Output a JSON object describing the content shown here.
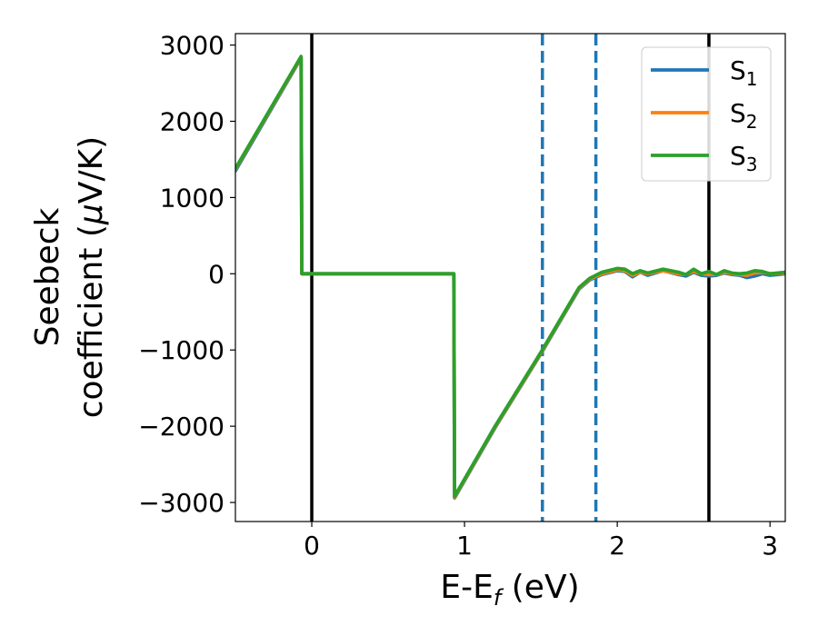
{
  "chart_data": {
    "type": "line",
    "xlabel": "E-E",
    "xlabel_sub": "f",
    "xlabel_unit": " (eV)",
    "ylabel_line1": "Seebeck",
    "ylabel_line2": "coefficient  (",
    "ylabel_mu": "μ",
    "ylabel_unit": "V/K)",
    "xlim": [
      -0.5,
      3.1
    ],
    "ylim": [
      -3250,
      3150
    ],
    "x_ticks": [
      0,
      1,
      2,
      3
    ],
    "x_tick_labels": [
      "0",
      "1",
      "2",
      "3"
    ],
    "y_ticks": [
      3000,
      2000,
      1000,
      0,
      -1000,
      -2000,
      -3000
    ],
    "y_tick_labels": [
      "3000",
      "2000",
      "1000",
      "0",
      "−1000",
      "−2000",
      "−3000"
    ],
    "grid": false,
    "legend_position": "top-right",
    "vlines": [
      {
        "x": 0.0,
        "style": "solid",
        "color": "#000000"
      },
      {
        "x": 2.6,
        "style": "solid",
        "color": "#000000"
      },
      {
        "x": 1.51,
        "style": "dashed",
        "color": "#1f77b4"
      },
      {
        "x": 1.86,
        "style": "dashed",
        "color": "#1f77b4"
      }
    ],
    "series": [
      {
        "name": "S",
        "sub": "1",
        "color": "#1f77b4",
        "x": [
          -0.5,
          -0.07,
          -0.065,
          0.93,
          0.935,
          1.2,
          1.5,
          1.75,
          1.82,
          1.9,
          2.0,
          2.05,
          2.1,
          2.15,
          2.2,
          2.3,
          2.4,
          2.45,
          2.5,
          2.55,
          2.6,
          2.65,
          2.7,
          2.75,
          2.8,
          2.85,
          2.9,
          2.95,
          3.0,
          3.1
        ],
        "y": [
          1350,
          2830,
          0,
          0,
          -2940,
          -2020,
          -1050,
          -200,
          -80,
          -10,
          40,
          30,
          -40,
          20,
          -20,
          40,
          -10,
          -30,
          20,
          -20,
          -30,
          -20,
          10,
          -10,
          -20,
          -50,
          -30,
          0,
          -20,
          0
        ]
      },
      {
        "name": "S",
        "sub": "2",
        "color": "#ff7f0e",
        "x": [
          -0.5,
          -0.07,
          -0.065,
          0.93,
          0.935,
          1.2,
          1.5,
          1.75,
          1.82,
          1.9,
          2.0,
          2.05,
          2.1,
          2.15,
          2.2,
          2.3,
          2.4,
          2.45,
          2.5,
          2.55,
          2.6,
          2.65,
          2.7,
          2.75,
          2.8,
          2.85,
          2.9,
          2.95,
          3.0,
          3.1
        ],
        "y": [
          1370,
          2840,
          0,
          0,
          -2930,
          -2010,
          -1040,
          -190,
          -70,
          0,
          50,
          40,
          -20,
          20,
          0,
          40,
          0,
          -10,
          30,
          0,
          -10,
          -10,
          20,
          0,
          -10,
          -20,
          10,
          20,
          0,
          10
        ]
      },
      {
        "name": "S",
        "sub": "3",
        "color": "#2ca02c",
        "x": [
          -0.5,
          -0.07,
          -0.065,
          0.93,
          0.935,
          1.2,
          1.5,
          1.75,
          1.82,
          1.9,
          2.0,
          2.05,
          2.1,
          2.15,
          2.2,
          2.3,
          2.4,
          2.45,
          2.5,
          2.55,
          2.6,
          2.65,
          2.7,
          2.75,
          2.8,
          2.85,
          2.9,
          2.95,
          3.0,
          3.1
        ],
        "y": [
          1380,
          2850,
          0,
          0,
          -2920,
          -2000,
          -1030,
          -180,
          -60,
          20,
          70,
          60,
          0,
          40,
          10,
          60,
          20,
          -10,
          60,
          0,
          30,
          -10,
          40,
          10,
          0,
          10,
          40,
          30,
          0,
          20
        ]
      }
    ]
  }
}
